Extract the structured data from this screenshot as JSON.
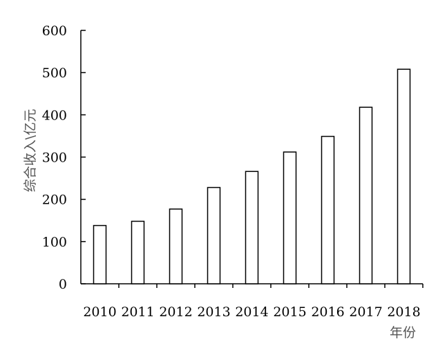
{
  "chart_data": {
    "type": "bar",
    "categories": [
      "2010",
      "2011",
      "2012",
      "2013",
      "2014",
      "2015",
      "2016",
      "2017",
      "2018"
    ],
    "values": [
      138,
      148,
      177,
      228,
      266,
      312,
      349,
      418,
      508
    ],
    "title": "",
    "xlabel": "年份",
    "ylabel": "综合收入\\亿元",
    "ylim": [
      0,
      600
    ],
    "yticks": [
      "0",
      "100",
      "200",
      "300",
      "400",
      "500",
      "600"
    ],
    "grid": false,
    "colors": {
      "bar_fill": "#ffffff",
      "bar_stroke": "#000000",
      "axis": "#000000"
    }
  }
}
